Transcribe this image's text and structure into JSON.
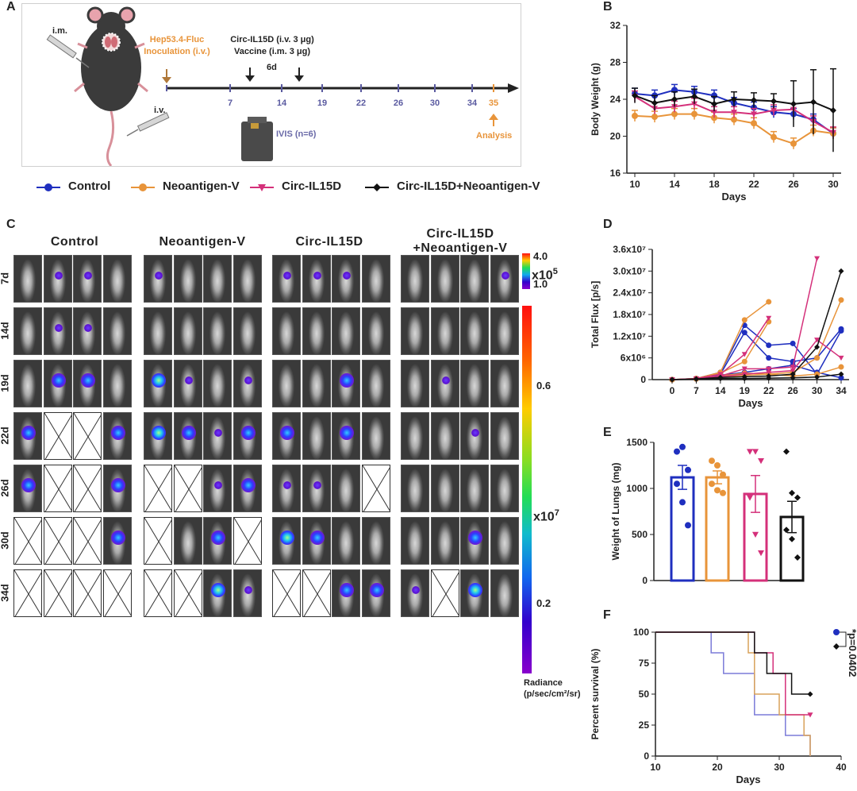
{
  "panels": {
    "a": "A",
    "b": "B",
    "c": "C",
    "d": "D",
    "e": "E",
    "f": "F"
  },
  "panel_a": {
    "route_im": "i.m.",
    "route_iv": "i.v.",
    "inoculation": [
      "Hep53.4-Fluc",
      "Inoculation (i.v.)"
    ],
    "treatment": [
      "Circ-IL15D (i.v.  3 μg)",
      "Vaccine (i.m. 3 μg)"
    ],
    "interval": "6d",
    "ivis": "IVIS (n=6)",
    "analysis": "Analysis",
    "timeline_days": [
      "7",
      "14",
      "19",
      "22",
      "26",
      "30",
      "34",
      "35"
    ],
    "colors": {
      "accent": "#e8943a",
      "timeline": "#5a5aa0"
    }
  },
  "legend": [
    {
      "label": "Control",
      "color": "#1f2fbf",
      "marker": "circle"
    },
    {
      "label": "Neoantigen-V",
      "color": "#e8943a",
      "marker": "circle"
    },
    {
      "label": "Circ-IL15D",
      "color": "#d4307a",
      "marker": "triangle-down"
    },
    {
      "label": "Circ-IL15D+Neoantigen-V",
      "color": "#111111",
      "marker": "diamond"
    }
  ],
  "panel_c": {
    "groups": [
      "Control",
      "Neoantigen-V",
      "Circ-IL15D",
      "+Neoantigen-V"
    ],
    "group4_line1": "Circ-IL15D",
    "days": [
      "7d",
      "14d",
      "19d",
      "22d",
      "26d",
      "30d",
      "34d"
    ],
    "scale_top": {
      "max": "4.0",
      "mult": "x10",
      "exp": "5",
      "min": "1.0"
    },
    "scale_main": {
      "t1": "0.6",
      "mult": "x10",
      "exp": "7",
      "t2": "0.2"
    },
    "radiance_label": [
      "Radiance",
      "(p/sec/cm²/sr)"
    ]
  },
  "chart_data": [
    {
      "id": "B",
      "type": "line",
      "xlabel": "Days",
      "ylabel": "Body Weight (g)",
      "x": [
        10,
        12,
        14,
        16,
        18,
        20,
        22,
        24,
        26,
        28,
        30
      ],
      "xticks": [
        10,
        14,
        18,
        22,
        26,
        30
      ],
      "yticks": [
        16,
        20,
        24,
        28,
        32
      ],
      "ylim": [
        16,
        32
      ],
      "series": [
        {
          "name": "Control",
          "values": [
            24.6,
            24.4,
            25.0,
            24.8,
            24.4,
            23.6,
            23.1,
            22.6,
            22.4,
            21.8,
            20.3
          ]
        },
        {
          "name": "Neoantigen-V",
          "values": [
            22.2,
            22.1,
            22.4,
            22.4,
            22.0,
            21.8,
            21.4,
            19.9,
            19.2,
            20.6,
            20.3
          ]
        },
        {
          "name": "Circ-IL15D",
          "values": [
            24.3,
            23.0,
            23.2,
            23.5,
            22.6,
            22.6,
            22.4,
            22.8,
            22.9,
            21.6,
            20.4
          ]
        },
        {
          "name": "Circ-IL15D+Neoantigen-V",
          "values": [
            24.4,
            23.6,
            24.0,
            24.3,
            23.5,
            24.0,
            23.9,
            23.8,
            23.5,
            23.7,
            22.8
          ]
        }
      ]
    },
    {
      "id": "D",
      "type": "line",
      "xlabel": "Days",
      "ylabel": "Total Flux [p/s]",
      "categories": [
        "0",
        "7",
        "14",
        "19",
        "22",
        "26",
        "30",
        "34"
      ],
      "yticks": [
        "0",
        "6x10⁶",
        "1.2x10⁷",
        "1.8x10⁷",
        "2.4x10⁷",
        "3.0x10⁷",
        "3.6x10⁷"
      ],
      "ylim": [
        0,
        36000000
      ],
      "series": [
        {
          "name": "Control",
          "values": [
            0,
            300000,
            2000000,
            15000000,
            9500000,
            10000000,
            1500000,
            13500000
          ]
        },
        {
          "name": "Control",
          "values": [
            0,
            200000,
            1500000,
            13000000,
            6000000,
            5000000,
            6000000,
            14000000
          ]
        },
        {
          "name": "Control",
          "values": [
            0,
            200000,
            1200000,
            2000000,
            3000000,
            4000000,
            2000000,
            500000
          ]
        },
        {
          "name": "Neoantigen-V",
          "values": [
            0,
            300000,
            2000000,
            16500000,
            21500000,
            null,
            null,
            null
          ]
        },
        {
          "name": "Neoantigen-V",
          "values": [
            0,
            300000,
            1800000,
            5000000,
            16000000,
            null,
            null,
            null
          ]
        },
        {
          "name": "Neoantigen-V",
          "values": [
            0,
            200000,
            1000000,
            1800000,
            1500000,
            2000000,
            6000000,
            22000000
          ]
        },
        {
          "name": "Neoantigen-V",
          "values": [
            0,
            200000,
            800000,
            1200000,
            1500000,
            1000000,
            1500000,
            3500000
          ]
        },
        {
          "name": "Circ-IL15D",
          "values": [
            0,
            300000,
            1500000,
            7000000,
            17000000,
            null,
            null,
            null
          ]
        },
        {
          "name": "Circ-IL15D",
          "values": [
            0,
            200000,
            1000000,
            3000000,
            3000000,
            3500000,
            33500000,
            null
          ]
        },
        {
          "name": "Circ-IL15D",
          "values": [
            0,
            200000,
            800000,
            1500000,
            2000000,
            2500000,
            11000000,
            6000000
          ]
        },
        {
          "name": "Circ-IL15D+Neoantigen-V",
          "values": [
            0,
            200000,
            600000,
            800000,
            1000000,
            1500000,
            9000000,
            30000000
          ]
        },
        {
          "name": "Circ-IL15D+Neoantigen-V",
          "values": [
            0,
            100000,
            300000,
            300000,
            400000,
            500000,
            700000,
            1500000
          ]
        }
      ]
    },
    {
      "id": "E",
      "type": "bar",
      "ylabel": "Weight of Lungs (mg)",
      "categories": [
        "Control",
        "Neoantigen-V",
        "Circ-IL15D",
        "Circ-IL15D+Neoantigen-V"
      ],
      "values": [
        1120,
        1120,
        940,
        690
      ],
      "errors": [
        130,
        70,
        200,
        170
      ],
      "points": [
        [
          1400,
          1450,
          1200,
          1050,
          850,
          600
        ],
        [
          1300,
          1250,
          1150,
          1050,
          980,
          950
        ],
        [
          1400,
          1400,
          1300,
          900,
          500,
          300
        ],
        [
          1400,
          950,
          900,
          550,
          450,
          250
        ]
      ],
      "yticks": [
        0,
        500,
        1000,
        1500
      ],
      "ylim": [
        0,
        1500
      ]
    },
    {
      "id": "F",
      "type": "line",
      "xlabel": "Days",
      "ylabel": "Percent survival (%)",
      "xticks": [
        10,
        20,
        30,
        40
      ],
      "yticks": [
        0,
        25,
        50,
        75,
        100
      ],
      "xlim": [
        10,
        40
      ],
      "ylim": [
        0,
        100
      ],
      "annotation": "*p=0.0402",
      "series": [
        {
          "name": "Control",
          "steps": [
            [
              10,
              100
            ],
            [
              19,
              83.3
            ],
            [
              21,
              66.7
            ],
            [
              26,
              33.3
            ],
            [
              31,
              16.7
            ],
            [
              35,
              0
            ]
          ]
        },
        {
          "name": "Neoantigen-V",
          "steps": [
            [
              10,
              100
            ],
            [
              25,
              83.3
            ],
            [
              26,
              50
            ],
            [
              30,
              33.3
            ],
            [
              34,
              16.7
            ],
            [
              35,
              0
            ]
          ]
        },
        {
          "name": "Circ-IL15D",
          "steps": [
            [
              10,
              100
            ],
            [
              26,
              83.3
            ],
            [
              29,
              66.7
            ],
            [
              31,
              33.3
            ],
            [
              35,
              33.3
            ]
          ]
        },
        {
          "name": "Circ-IL15D+Neoantigen-V",
          "steps": [
            [
              10,
              100
            ],
            [
              26,
              83.3
            ],
            [
              28,
              66.7
            ],
            [
              32,
              50
            ],
            [
              35,
              50
            ]
          ]
        }
      ]
    }
  ]
}
